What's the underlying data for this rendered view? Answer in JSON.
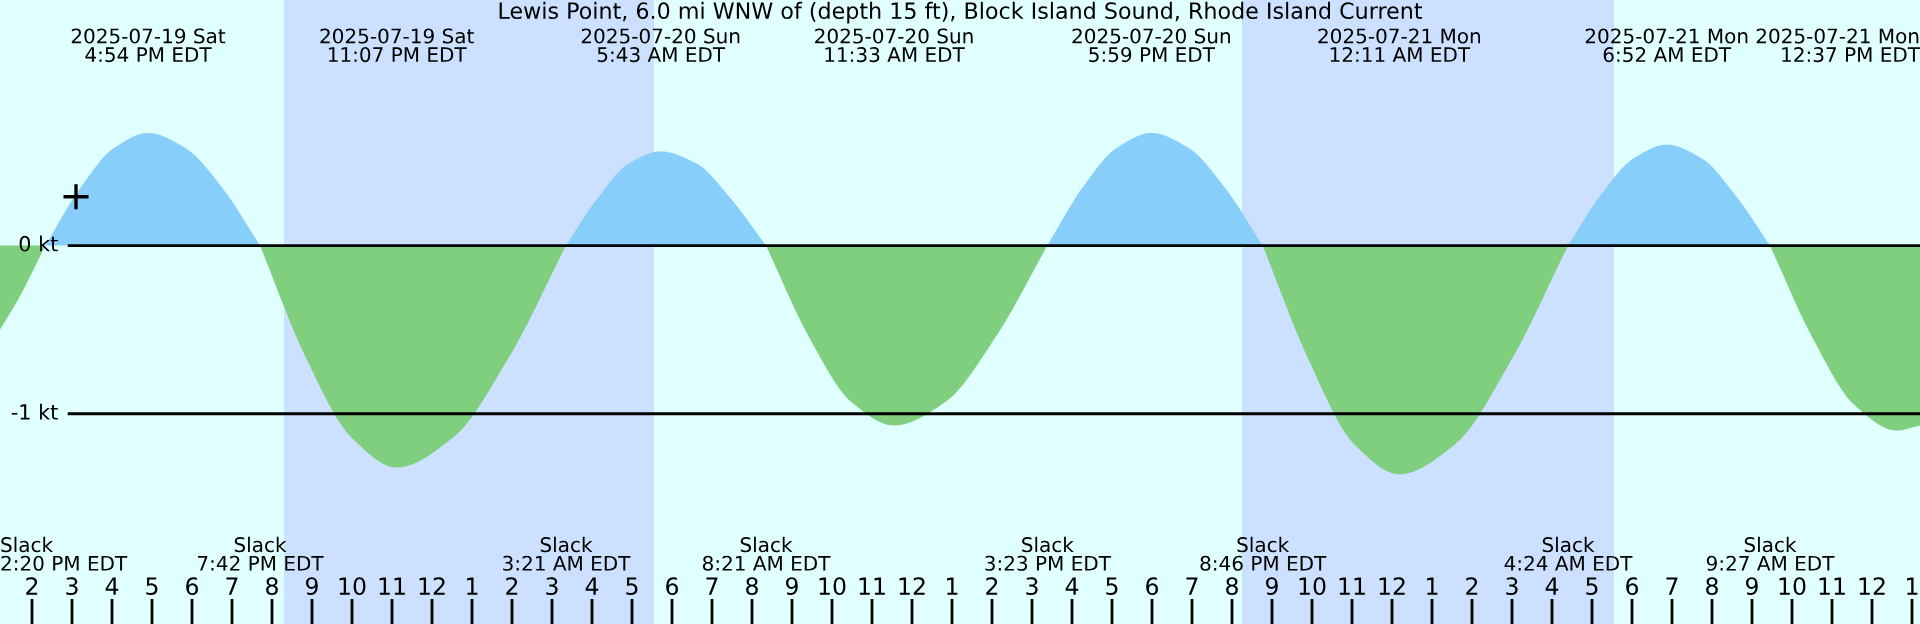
{
  "chart_data": {
    "type": "area",
    "title": "Lewis Point, 6.0 mi WNW of (depth 15 ft), Block Island Sound, Rhode Island Current",
    "series": [
      {
        "color": "#7fcf7f",
        "x": [
          "2025-07-19T13:12",
          "2025-07-19T13:42",
          "2025-07-19T14:20"
        ],
        "values": [
          -0.5,
          -0.3,
          0
        ]
      },
      {
        "color": "#87cefa",
        "x": [
          "2025-07-19T14:20",
          "2025-07-19T15:12",
          "2025-07-19T16:03",
          "2025-07-19T16:54",
          "2025-07-19T17:50",
          "2025-07-19T18:46",
          "2025-07-19T19:42"
        ],
        "values": [
          0,
          0.34,
          0.58,
          0.67,
          0.58,
          0.34,
          0
        ]
      },
      {
        "color": "#7fcf7f",
        "x": [
          "2025-07-19T19:42",
          "2025-07-19T20:50",
          "2025-07-19T21:59",
          "2025-07-19T23:07",
          "2025-07-20T00:32",
          "2025-07-20T01:56",
          "2025-07-20T03:21"
        ],
        "values": [
          0,
          -0.66,
          -1.14,
          -1.32,
          -1.14,
          -0.66,
          0
        ]
      },
      {
        "color": "#87cefa",
        "x": [
          "2025-07-20T03:21",
          "2025-07-20T04:08",
          "2025-07-20T04:56",
          "2025-07-20T05:43",
          "2025-07-20T06:36",
          "2025-07-20T07:28",
          "2025-07-20T08:21"
        ],
        "values": [
          0,
          0.28,
          0.49,
          0.56,
          0.49,
          0.28,
          0
        ]
      },
      {
        "color": "#7fcf7f",
        "x": [
          "2025-07-20T08:21",
          "2025-07-20T09:25",
          "2025-07-20T10:29",
          "2025-07-20T11:33",
          "2025-07-20T12:50",
          "2025-07-20T14:06",
          "2025-07-20T15:23"
        ],
        "values": [
          0,
          -0.54,
          -0.93,
          -1.07,
          -0.93,
          -0.54,
          0
        ]
      },
      {
        "color": "#87cefa",
        "x": [
          "2025-07-20T15:23",
          "2025-07-20T16:15",
          "2025-07-20T17:07",
          "2025-07-20T17:59",
          "2025-07-20T18:55",
          "2025-07-20T19:50",
          "2025-07-20T20:46"
        ],
        "values": [
          0,
          0.34,
          0.58,
          0.67,
          0.58,
          0.34,
          0
        ]
      },
      {
        "color": "#7fcf7f",
        "x": [
          "2025-07-20T20:46",
          "2025-07-20T21:55",
          "2025-07-20T23:03",
          "2025-07-21T00:11",
          "2025-07-21T01:35",
          "2025-07-21T02:59",
          "2025-07-21T04:24"
        ],
        "values": [
          0,
          -0.68,
          -1.18,
          -1.36,
          -1.18,
          -0.68,
          0
        ]
      },
      {
        "color": "#87cefa",
        "x": [
          "2025-07-21T04:24",
          "2025-07-21T05:13",
          "2025-07-21T06:03",
          "2025-07-21T06:52",
          "2025-07-21T07:44",
          "2025-07-21T08:35",
          "2025-07-21T09:27"
        ],
        "values": [
          0,
          0.3,
          0.52,
          0.6,
          0.52,
          0.3,
          0
        ]
      },
      {
        "color": "#7fcf7f",
        "x": [
          "2025-07-21T09:27",
          "2025-07-21T10:31",
          "2025-07-21T11:34",
          "2025-07-21T12:37",
          "2025-07-21T13:12"
        ],
        "values": [
          0,
          -0.55,
          -0.95,
          -1.1,
          -1.07
        ]
      },
      {
        "type": "scatter",
        "marker": "cross",
        "color": "#000000",
        "x": [
          "2025-07-19T15:06"
        ],
        "values": [
          0.29
        ]
      }
    ],
    "xlim": [
      "2025-07-19T13:12",
      "2025-07-21T13:12"
    ],
    "xticks": [
      {
        "value": "2025-07-19T14:00",
        "label": "2"
      },
      {
        "value": "2025-07-19T15:00",
        "label": "3"
      },
      {
        "value": "2025-07-19T16:00",
        "label": "4"
      },
      {
        "value": "2025-07-19T17:00",
        "label": "5"
      },
      {
        "value": "2025-07-19T18:00",
        "label": "6"
      },
      {
        "value": "2025-07-19T19:00",
        "label": "7"
      },
      {
        "value": "2025-07-19T20:00",
        "label": "8"
      },
      {
        "value": "2025-07-19T21:00",
        "label": "9"
      },
      {
        "value": "2025-07-19T22:00",
        "label": "10"
      },
      {
        "value": "2025-07-19T23:00",
        "label": "11"
      },
      {
        "value": "2025-07-20T00:00",
        "label": "12"
      },
      {
        "value": "2025-07-20T01:00",
        "label": "1"
      },
      {
        "value": "2025-07-20T02:00",
        "label": "2"
      },
      {
        "value": "2025-07-20T03:00",
        "label": "3"
      },
      {
        "value": "2025-07-20T04:00",
        "label": "4"
      },
      {
        "value": "2025-07-20T05:00",
        "label": "5"
      },
      {
        "value": "2025-07-20T06:00",
        "label": "6"
      },
      {
        "value": "2025-07-20T07:00",
        "label": "7"
      },
      {
        "value": "2025-07-20T08:00",
        "label": "8"
      },
      {
        "value": "2025-07-20T09:00",
        "label": "9"
      },
      {
        "value": "2025-07-20T10:00",
        "label": "10"
      },
      {
        "value": "2025-07-20T11:00",
        "label": "11"
      },
      {
        "value": "2025-07-20T12:00",
        "label": "12"
      },
      {
        "value": "2025-07-20T13:00",
        "label": "1"
      },
      {
        "value": "2025-07-20T14:00",
        "label": "2"
      },
      {
        "value": "2025-07-20T15:00",
        "label": "3"
      },
      {
        "value": "2025-07-20T16:00",
        "label": "4"
      },
      {
        "value": "2025-07-20T17:00",
        "label": "5"
      },
      {
        "value": "2025-07-20T18:00",
        "label": "6"
      },
      {
        "value": "2025-07-20T19:00",
        "label": "7"
      },
      {
        "value": "2025-07-20T20:00",
        "label": "8"
      },
      {
        "value": "2025-07-20T21:00",
        "label": "9"
      },
      {
        "value": "2025-07-20T22:00",
        "label": "10"
      },
      {
        "value": "2025-07-20T23:00",
        "label": "11"
      },
      {
        "value": "2025-07-21T00:00",
        "label": "12"
      },
      {
        "value": "2025-07-21T01:00",
        "label": "1"
      },
      {
        "value": "2025-07-21T02:00",
        "label": "2"
      },
      {
        "value": "2025-07-21T03:00",
        "label": "3"
      },
      {
        "value": "2025-07-21T04:00",
        "label": "4"
      },
      {
        "value": "2025-07-21T05:00",
        "label": "5"
      },
      {
        "value": "2025-07-21T06:00",
        "label": "6"
      },
      {
        "value": "2025-07-21T07:00",
        "label": "7"
      },
      {
        "value": "2025-07-21T08:00",
        "label": "8"
      },
      {
        "value": "2025-07-21T09:00",
        "label": "9"
      },
      {
        "value": "2025-07-21T10:00",
        "label": "10"
      },
      {
        "value": "2025-07-21T11:00",
        "label": "11"
      },
      {
        "value": "2025-07-21T12:00",
        "label": "12"
      },
      {
        "value": "2025-07-21T13:00",
        "label": "1"
      }
    ],
    "ylim": [
      -2.25,
      1.46
    ],
    "yticks": [
      {
        "value": 0,
        "label": "0 kt"
      },
      {
        "value": -1,
        "label": "-1 kt"
      }
    ],
    "grid": "y",
    "bands": [
      {
        "axis": "x",
        "from": "2025-07-19T20:18",
        "to": "2025-07-20T05:33",
        "color": "#cce0ff"
      },
      {
        "axis": "x",
        "from": "2025-07-20T20:15",
        "to": "2025-07-21T05:33",
        "color": "#cce0ff"
      }
    ],
    "annotations": [
      "2025-07-19 Sat\n4:54 PM EDT",
      "2025-07-19 Sat\n11:07 PM EDT",
      "2025-07-20 Sun\n5:43 AM EDT",
      "2025-07-20 Sun\n11:33 AM EDT",
      "2025-07-20 Sun\n5:59 PM EDT",
      "2025-07-21 Mon\n12:11 AM EDT",
      "2025-07-21 Mon\n6:52 AM EDT",
      "2025-07-21 Mon\n12:37 PM EDT",
      "Slack\n2:20 PM EDT",
      "Slack\n7:42 PM EDT",
      "Slack\n3:21 AM EDT",
      "Slack\n8:21 AM EDT",
      "Slack\n3:23 PM EDT",
      "Slack\n8:46 PM EDT",
      "Slack\n4:24 AM EDT",
      "Slack\n9:27 AM EDT"
    ]
  }
}
